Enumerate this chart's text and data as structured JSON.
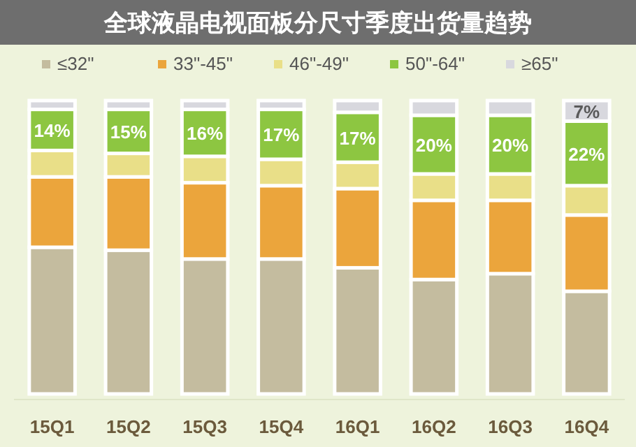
{
  "chart_data": {
    "type": "bar",
    "title": "全球液晶电视面板分尺寸季度出货量趋势",
    "stacked": true,
    "legend": "top",
    "categories": [
      "15Q1",
      "15Q2",
      "15Q3",
      "15Q4",
      "16Q1",
      "16Q2",
      "16Q3",
      "16Q4"
    ],
    "series": [
      {
        "name": "≤32\"",
        "color": "#c4bc9f",
        "values": [
          50,
          49,
          46,
          46,
          43,
          39,
          41,
          35
        ]
      },
      {
        "name": "33\"-45\"",
        "color": "#eba53c",
        "values": [
          24,
          25,
          26,
          25,
          27,
          27,
          25,
          26
        ]
      },
      {
        "name": "46\"-49\"",
        "color": "#e9df88",
        "values": [
          9,
          8,
          9,
          9,
          9,
          9,
          9,
          10
        ]
      },
      {
        "name": "50\"-64\"",
        "color": "#8dc641",
        "values": [
          14,
          15,
          16,
          17,
          17,
          20,
          20,
          22
        ],
        "value_labels": [
          "14%",
          "15%",
          "16%",
          "17%",
          "17%",
          "20%",
          "20%",
          "22%"
        ]
      },
      {
        "name": "≥65\"",
        "color": "#d8d8de",
        "values": [
          3,
          3,
          3,
          3,
          4,
          5,
          5,
          7
        ],
        "value_labels": [
          null,
          null,
          null,
          null,
          null,
          null,
          null,
          "7%"
        ]
      }
    ]
  }
}
